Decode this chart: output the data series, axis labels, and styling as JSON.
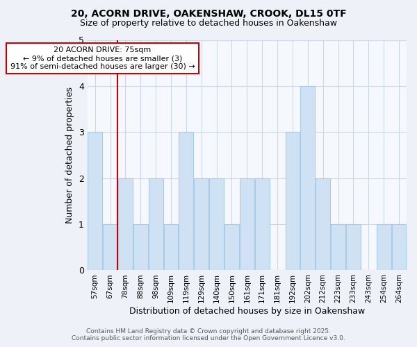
{
  "title1": "20, ACORN DRIVE, OAKENSHAW, CROOK, DL15 0TF",
  "title2": "Size of property relative to detached houses in Oakenshaw",
  "xlabel": "Distribution of detached houses by size in Oakenshaw",
  "ylabel": "Number of detached properties",
  "categories": [
    "57sqm",
    "67sqm",
    "78sqm",
    "88sqm",
    "98sqm",
    "109sqm",
    "119sqm",
    "129sqm",
    "140sqm",
    "150sqm",
    "161sqm",
    "171sqm",
    "181sqm",
    "192sqm",
    "202sqm",
    "212sqm",
    "223sqm",
    "233sqm",
    "243sqm",
    "254sqm",
    "264sqm"
  ],
  "values": [
    3,
    1,
    2,
    1,
    2,
    1,
    3,
    2,
    2,
    1,
    2,
    2,
    0,
    3,
    4,
    2,
    1,
    1,
    0,
    1,
    1
  ],
  "bar_color": "#cfe2f3",
  "bar_edge_color": "#aacce8",
  "vline_x_index": 1.5,
  "vline_color": "#cc0000",
  "ylim": [
    0,
    5
  ],
  "yticks": [
    0,
    1,
    2,
    3,
    4,
    5
  ],
  "annotation_text": "20 ACORN DRIVE: 75sqm\n← 9% of detached houses are smaller (3)\n91% of semi-detached houses are larger (30) →",
  "footer1": "Contains HM Land Registry data © Crown copyright and database right 2025.",
  "footer2": "Contains public sector information licensed under the Open Government Licence v3.0.",
  "background_color": "#eef2f8",
  "plot_background": "#f5f8fd",
  "grid_color": "#d0d8e8"
}
